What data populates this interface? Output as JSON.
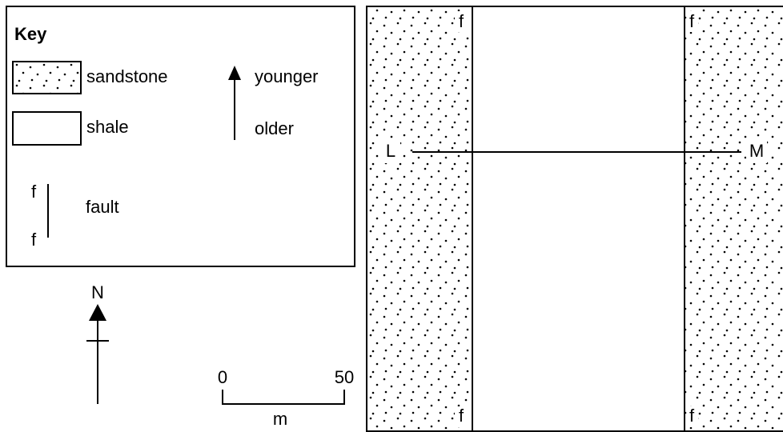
{
  "key": {
    "title": "Key",
    "items": [
      {
        "label": "sandstone"
      },
      {
        "label": "shale"
      },
      {
        "label": "fault",
        "symbol": "f"
      }
    ],
    "arrow": {
      "top": "younger",
      "bottom": "older"
    }
  },
  "north": "N",
  "scale": {
    "start": "0",
    "end": "50",
    "unit": "m"
  },
  "map": {
    "fault_label": "f",
    "line_start": "L",
    "line_end": "M"
  }
}
